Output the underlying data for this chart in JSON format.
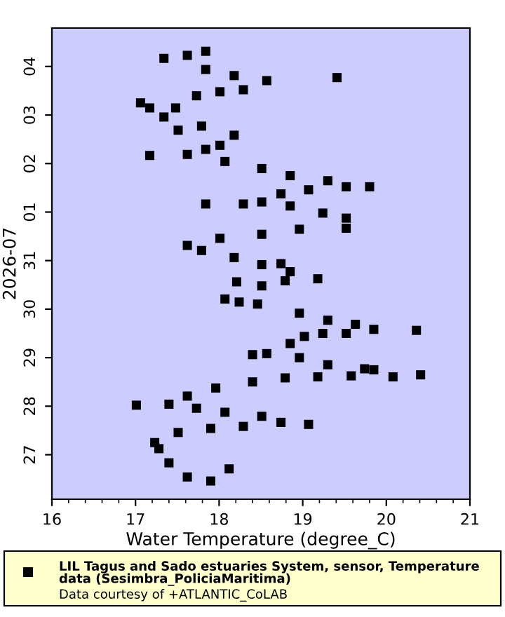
{
  "chart_data": {
    "type": "scatter",
    "orientation": "horizontal",
    "xlabel": "Water Temperature (degree_C)",
    "ylabel": "2026-07",
    "xlim": [
      16,
      21
    ],
    "xticks": [
      16,
      17,
      18,
      19,
      20,
      21
    ],
    "ylim": [
      "2026-07-26T02:00",
      "2026-08-04T19:00"
    ],
    "yticks": [
      {
        "value": "2026-07-27",
        "label": "27"
      },
      {
        "value": "2026-07-28",
        "label": "28"
      },
      {
        "value": "2026-07-29",
        "label": "29"
      },
      {
        "value": "2026-07-30",
        "label": "30"
      },
      {
        "value": "2026-07-31",
        "label": "31"
      },
      {
        "value": "2026-08-01",
        "label": "01"
      },
      {
        "value": "2026-08-02",
        "label": "02"
      },
      {
        "value": "2026-08-03",
        "label": "03"
      },
      {
        "value": "2026-08-04",
        "label": "04"
      }
    ],
    "marker": "square",
    "grid": false,
    "legend": "bottom",
    "annotations": [
      "Data courtesy of +ATLANTIC_CoLAB"
    ],
    "series": [
      {
        "name": "LIL Tagus and Sado estuaries System, sensor, Temperature data (Sesimbra_PoliciaMaritima)",
        "color": "#000000",
        "x": [
          "2026-07-26T11:00",
          "2026-07-26T17:00",
          "2026-07-26T13:00",
          "2026-07-26T20:00",
          "2026-07-27T03:00",
          "2026-07-27T06:00",
          "2026-07-27T11:00",
          "2026-07-27T13:00",
          "2026-07-27T14:00",
          "2026-07-27T16:00",
          "2026-07-27T15:00",
          "2026-07-27T19:00",
          "2026-07-27T21:00",
          "2026-07-27T23:00",
          "2026-07-28T01:00",
          "2026-07-28T00:30",
          "2026-07-28T05:00",
          "2026-07-28T09:00",
          "2026-07-28T12:00",
          "2026-07-28T14:00",
          "2026-07-28T14:30",
          "2026-07-28T15:00",
          "2026-07-28T18:00",
          "2026-07-28T14:30",
          "2026-07-28T15:30",
          "2026-07-28T18:30",
          "2026-07-28T20:30",
          "2026-07-29T00:00",
          "2026-07-29T02:00",
          "2026-07-29T01:30",
          "2026-07-29T07:00",
          "2026-07-29T10:30",
          "2026-07-29T12:00",
          "2026-07-29T12:00",
          "2026-07-29T14:00",
          "2026-07-29T13:30",
          "2026-07-29T16:30",
          "2026-07-29T18:30",
          "2026-07-29T22:00",
          "2026-07-30T02:30",
          "2026-07-30T05:00",
          "2026-07-30T03:30",
          "2026-07-30T13:30",
          "2026-07-30T11:30",
          "2026-07-30T14:00",
          "2026-07-30T15:00",
          "2026-07-30T18:30",
          "2026-07-30T22:00",
          "2026-07-31T01:30",
          "2026-07-30T22:30",
          "2026-07-31T05:00",
          "2026-07-31T07:30",
          "2026-07-31T11:00",
          "2026-07-31T13:00",
          "2026-07-31T15:30",
          "2026-07-31T16:00",
          "2026-07-31T21:00",
          "2026-07-31T23:30",
          "2026-08-01T03:00",
          "2026-08-01T05:00",
          "2026-08-01T04:00",
          "2026-08-01T04:00",
          "2026-08-01T09:00",
          "2026-08-01T11:00",
          "2026-08-01T12:30",
          "2026-08-01T12:30",
          "2026-08-01T15:30",
          "2026-08-01T18:00",
          "2026-08-01T21:30",
          "2026-08-02T01:00",
          "2026-08-02T04:30",
          "2026-08-02T04:00",
          "2026-08-02T07:00",
          "2026-08-02T14:00",
          "2026-08-02T09:00",
          "2026-08-02T16:30",
          "2026-08-02T18:30",
          "2026-08-02T23:00",
          "2026-08-03T03:30",
          "2026-08-03T06:00",
          "2026-08-03T03:30",
          "2026-08-03T09:30",
          "2026-08-03T11:30",
          "2026-08-03T12:30",
          "2026-08-03T17:00",
          "2026-08-03T19:30",
          "2026-08-03T22:30",
          "2026-08-04T05:30",
          "2026-08-04T04:00",
          "2026-08-04T07:30",
          "2026-08-03T18:30"
        ],
        "values": [
          17.9,
          18.12,
          17.62,
          17.4,
          17.28,
          17.23,
          17.51,
          17.9,
          18.29,
          18.74,
          19.07,
          18.51,
          18.07,
          17.73,
          17.4,
          17.01,
          17.62,
          17.96,
          18.4,
          18.79,
          19.18,
          19.58,
          19.85,
          20.08,
          20.41,
          19.74,
          19.3,
          18.96,
          18.57,
          18.4,
          18.85,
          19.02,
          19.24,
          19.52,
          19.85,
          20.36,
          19.63,
          19.3,
          18.96,
          18.46,
          18.07,
          18.24,
          18.21,
          18.51,
          18.79,
          19.18,
          18.85,
          18.51,
          18.18,
          18.74,
          17.79,
          17.62,
          18.01,
          18.51,
          18.96,
          19.52,
          19.52,
          19.24,
          18.85,
          18.51,
          17.84,
          18.29,
          18.74,
          19.07,
          19.52,
          19.8,
          19.3,
          18.85,
          18.51,
          18.07,
          17.62,
          17.17,
          17.84,
          18.18,
          18.01,
          17.51,
          17.79,
          17.34,
          17.17,
          17.06,
          17.48,
          17.73,
          18.01,
          18.29,
          18.57,
          18.18,
          17.84,
          17.62,
          17.34,
          17.84,
          19.41
        ]
      }
    ]
  }
}
